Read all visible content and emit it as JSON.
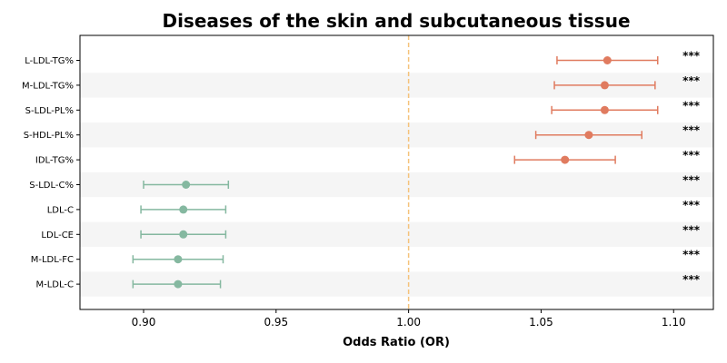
{
  "chart_data": {
    "type": "forest",
    "title": "Diseases of the skin and subcutaneous tissue",
    "xlabel": "Odds Ratio (OR)",
    "ylabel": "",
    "xlim": [
      0.876,
      1.115
    ],
    "xticks": [
      "0.90",
      "0.95",
      "1.00",
      "1.05",
      "1.10"
    ],
    "reference_line": 1.0,
    "grid": false,
    "row_stripes": true,
    "colors": {
      "positive": "#E07B5F",
      "negative": "#85B8A0",
      "reference": "#F5C27A",
      "stripe": "#F5F5F5"
    },
    "rows": [
      {
        "label": "L-LDL-TG%",
        "or": 1.075,
        "lower": 1.056,
        "upper": 1.094,
        "sig": "***"
      },
      {
        "label": "M-LDL-TG%",
        "or": 1.074,
        "lower": 1.055,
        "upper": 1.093,
        "sig": "***"
      },
      {
        "label": "S-LDL-PL%",
        "or": 1.074,
        "lower": 1.054,
        "upper": 1.094,
        "sig": "***"
      },
      {
        "label": "S-HDL-PL%",
        "or": 1.068,
        "lower": 1.048,
        "upper": 1.088,
        "sig": "***"
      },
      {
        "label": "IDL-TG%",
        "or": 1.059,
        "lower": 1.04,
        "upper": 1.078,
        "sig": "***"
      },
      {
        "label": "S-LDL-C%",
        "or": 0.916,
        "lower": 0.9,
        "upper": 0.932,
        "sig": "***"
      },
      {
        "label": "LDL-C",
        "or": 0.915,
        "lower": 0.899,
        "upper": 0.931,
        "sig": "***"
      },
      {
        "label": "LDL-CE",
        "or": 0.915,
        "lower": 0.899,
        "upper": 0.931,
        "sig": "***"
      },
      {
        "label": "M-LDL-FC",
        "or": 0.913,
        "lower": 0.896,
        "upper": 0.93,
        "sig": "***"
      },
      {
        "label": "M-LDL-C",
        "or": 0.913,
        "lower": 0.896,
        "upper": 0.929,
        "sig": "***"
      }
    ]
  }
}
